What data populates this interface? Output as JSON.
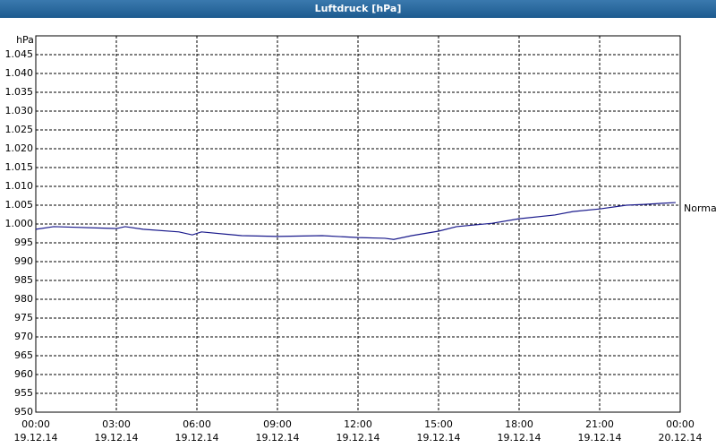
{
  "chart_data": {
    "type": "line",
    "title": "Luftdruck [hPa]",
    "ylabel": "hPa",
    "x": [
      0,
      0.67,
      3,
      3.33,
      4,
      5.33,
      5.83,
      6.17,
      7.67,
      9,
      10.67,
      12,
      13,
      13.33,
      14,
      15,
      15.67,
      17,
      18,
      19.33,
      20,
      21,
      22,
      22.67,
      23.33,
      23.83
    ],
    "series": [
      {
        "name": "Normal",
        "color": "#1a1a8c",
        "values": [
          998.6,
          999.3,
          998.8,
          999.3,
          998.6,
          997.9,
          997.1,
          997.9,
          996.9,
          996.7,
          996.9,
          996.4,
          996.2,
          995.9,
          996.9,
          998.1,
          999.3,
          1000.2,
          1001.4,
          1002.4,
          1003.3,
          1004.0,
          1005.0,
          1005.2,
          1005.5,
          1005.7
        ]
      }
    ],
    "xlim": [
      0,
      24
    ],
    "xticks": [
      {
        "value": 0,
        "label": "00:00\n19.12.14"
      },
      {
        "value": 3,
        "label": "03:00\n19.12.14"
      },
      {
        "value": 6,
        "label": "06:00\n19.12.14"
      },
      {
        "value": 9,
        "label": "09:00\n19.12.14"
      },
      {
        "value": 12,
        "label": "12:00\n19.12.14"
      },
      {
        "value": 15,
        "label": "15:00\n19.12.14"
      },
      {
        "value": 18,
        "label": "18:00\n19.12.14"
      },
      {
        "value": 21,
        "label": "21:00\n19.12.14"
      },
      {
        "value": 24,
        "label": "00:00\n20.12.14"
      }
    ],
    "ylim": [
      950,
      1050
    ],
    "yticks": [
      950,
      955,
      960,
      965,
      970,
      975,
      980,
      985,
      990,
      995,
      {
        "value": 1000,
        "label": "1.000"
      },
      {
        "value": 1005,
        "label": "1.005"
      },
      {
        "value": 1010,
        "label": "1.010"
      },
      {
        "value": 1015,
        "label": "1.015"
      },
      {
        "value": 1020,
        "label": "1.020"
      },
      {
        "value": 1025,
        "label": "1.025"
      },
      {
        "value": 1030,
        "label": "1.030"
      },
      {
        "value": 1035,
        "label": "1.035"
      },
      {
        "value": 1040,
        "label": "1.040"
      },
      {
        "value": 1045,
        "label": "1.045"
      }
    ],
    "grid": true
  }
}
